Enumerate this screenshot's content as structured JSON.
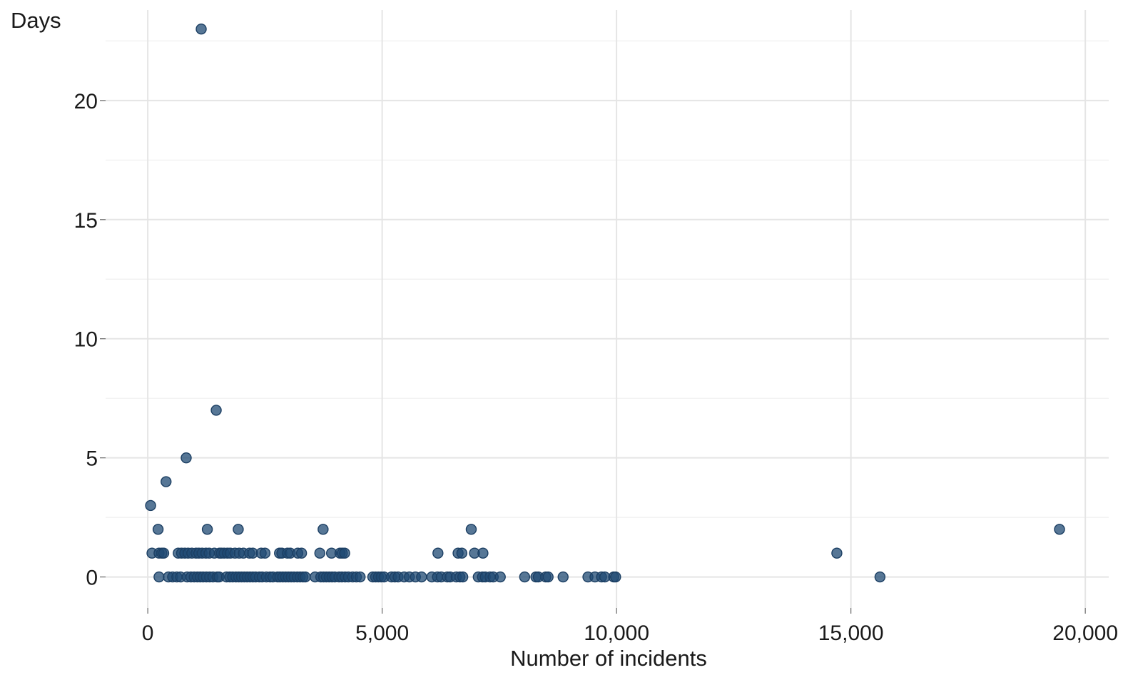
{
  "chart_data": {
    "type": "scatter",
    "title": "",
    "xlabel": "Number of incidents",
    "ylabel": "Days",
    "xlim": [
      -900,
      20500
    ],
    "ylim": [
      -1.3,
      23.8
    ],
    "x_ticks": [
      0,
      5000,
      10000,
      15000,
      20000
    ],
    "x_tick_labels": [
      "0",
      "5,000",
      "10,000",
      "15,000",
      "20,000"
    ],
    "y_ticks": [
      0,
      5,
      10,
      15,
      20
    ],
    "y_tick_labels": [
      "0",
      "5",
      "10",
      "15",
      "20"
    ],
    "grid": true,
    "legend": "none",
    "point_color": "#1f4a73",
    "point_opacity": 0.75,
    "series": [
      {
        "points": [
          [
            1140,
            23
          ],
          [
            1460,
            7
          ],
          [
            820,
            5
          ],
          [
            390,
            4
          ],
          [
            60,
            3
          ],
          [
            220,
            2
          ],
          [
            1270,
            2
          ],
          [
            1930,
            2
          ],
          [
            3740,
            2
          ],
          [
            6900,
            2
          ],
          [
            19450,
            2
          ],
          [
            90,
            1
          ],
          [
            240,
            1
          ],
          [
            300,
            1
          ],
          [
            340,
            1
          ],
          [
            650,
            1
          ],
          [
            720,
            1
          ],
          [
            790,
            1
          ],
          [
            860,
            1
          ],
          [
            940,
            1
          ],
          [
            1030,
            1
          ],
          [
            1090,
            1
          ],
          [
            1160,
            1
          ],
          [
            1240,
            1
          ],
          [
            1310,
            1
          ],
          [
            1420,
            1
          ],
          [
            1530,
            1
          ],
          [
            1570,
            1
          ],
          [
            1630,
            1
          ],
          [
            1700,
            1
          ],
          [
            1760,
            1
          ],
          [
            1860,
            1
          ],
          [
            1950,
            1
          ],
          [
            2040,
            1
          ],
          [
            2170,
            1
          ],
          [
            2240,
            1
          ],
          [
            2420,
            1
          ],
          [
            2500,
            1
          ],
          [
            2810,
            1
          ],
          [
            2860,
            1
          ],
          [
            2980,
            1
          ],
          [
            3040,
            1
          ],
          [
            3200,
            1
          ],
          [
            3280,
            1
          ],
          [
            3670,
            1
          ],
          [
            3920,
            1
          ],
          [
            4100,
            1
          ],
          [
            4150,
            1
          ],
          [
            4200,
            1
          ],
          [
            6190,
            1
          ],
          [
            6620,
            1
          ],
          [
            6700,
            1
          ],
          [
            6970,
            1
          ],
          [
            7150,
            1
          ],
          [
            14700,
            1
          ],
          [
            240,
            0
          ],
          [
            440,
            0
          ],
          [
            530,
            0
          ],
          [
            620,
            0
          ],
          [
            700,
            0
          ],
          [
            840,
            0
          ],
          [
            920,
            0
          ],
          [
            990,
            0
          ],
          [
            1060,
            0
          ],
          [
            1120,
            0
          ],
          [
            1180,
            0
          ],
          [
            1250,
            0
          ],
          [
            1320,
            0
          ],
          [
            1390,
            0
          ],
          [
            1480,
            0
          ],
          [
            1520,
            0
          ],
          [
            1680,
            0
          ],
          [
            1750,
            0
          ],
          [
            1810,
            0
          ],
          [
            1880,
            0
          ],
          [
            1940,
            0
          ],
          [
            2000,
            0
          ],
          [
            2060,
            0
          ],
          [
            2120,
            0
          ],
          [
            2180,
            0
          ],
          [
            2240,
            0
          ],
          [
            2300,
            0
          ],
          [
            2380,
            0
          ],
          [
            2440,
            0
          ],
          [
            2530,
            0
          ],
          [
            2610,
            0
          ],
          [
            2670,
            0
          ],
          [
            2770,
            0
          ],
          [
            2820,
            0
          ],
          [
            2880,
            0
          ],
          [
            2940,
            0
          ],
          [
            3000,
            0
          ],
          [
            3060,
            0
          ],
          [
            3120,
            0
          ],
          [
            3190,
            0
          ],
          [
            3250,
            0
          ],
          [
            3310,
            0
          ],
          [
            3360,
            0
          ],
          [
            3570,
            0
          ],
          [
            3690,
            0
          ],
          [
            3750,
            0
          ],
          [
            3810,
            0
          ],
          [
            3870,
            0
          ],
          [
            3930,
            0
          ],
          [
            3990,
            0
          ],
          [
            4080,
            0
          ],
          [
            4140,
            0
          ],
          [
            4210,
            0
          ],
          [
            4280,
            0
          ],
          [
            4370,
            0
          ],
          [
            4450,
            0
          ],
          [
            4530,
            0
          ],
          [
            4800,
            0
          ],
          [
            4860,
            0
          ],
          [
            4920,
            0
          ],
          [
            4980,
            0
          ],
          [
            5040,
            0
          ],
          [
            5200,
            0
          ],
          [
            5270,
            0
          ],
          [
            5340,
            0
          ],
          [
            5470,
            0
          ],
          [
            5580,
            0
          ],
          [
            5710,
            0
          ],
          [
            5840,
            0
          ],
          [
            6060,
            0
          ],
          [
            6180,
            0
          ],
          [
            6260,
            0
          ],
          [
            6390,
            0
          ],
          [
            6450,
            0
          ],
          [
            6580,
            0
          ],
          [
            6660,
            0
          ],
          [
            6720,
            0
          ],
          [
            7050,
            0
          ],
          [
            7140,
            0
          ],
          [
            7200,
            0
          ],
          [
            7300,
            0
          ],
          [
            7370,
            0
          ],
          [
            7520,
            0
          ],
          [
            8040,
            0
          ],
          [
            8280,
            0
          ],
          [
            8330,
            0
          ],
          [
            8490,
            0
          ],
          [
            8540,
            0
          ],
          [
            8860,
            0
          ],
          [
            9390,
            0
          ],
          [
            9540,
            0
          ],
          [
            9680,
            0
          ],
          [
            9750,
            0
          ],
          [
            9940,
            0
          ],
          [
            9980,
            0
          ],
          [
            15620,
            0
          ]
        ]
      }
    ]
  }
}
